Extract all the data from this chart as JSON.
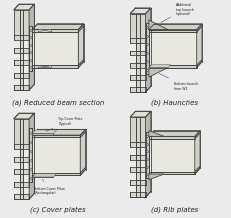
{
  "background_color": "#ebebeb",
  "panels": [
    {
      "label": "(a) Reduced beam section"
    },
    {
      "label": "(b) Haunches"
    },
    {
      "label": "(c) Cover plates"
    },
    {
      "label": "(d) Rib plates"
    }
  ],
  "line_color": "#444444",
  "col_fill": "#d5d5cc",
  "col_side_fill": "#b8b8b0",
  "col_top_fill": "#e0e0d8",
  "beam_fill": "#d0d0c8",
  "beam_web_fill": "#e8e8e0",
  "beam_side_fill": "#b8b8b0",
  "ep_fill": "#c8c8c0",
  "haunch_fill": "#c0c0b8",
  "label_fontsize": 5.0,
  "fig_width": 2.32,
  "fig_height": 2.18,
  "dpi": 100
}
